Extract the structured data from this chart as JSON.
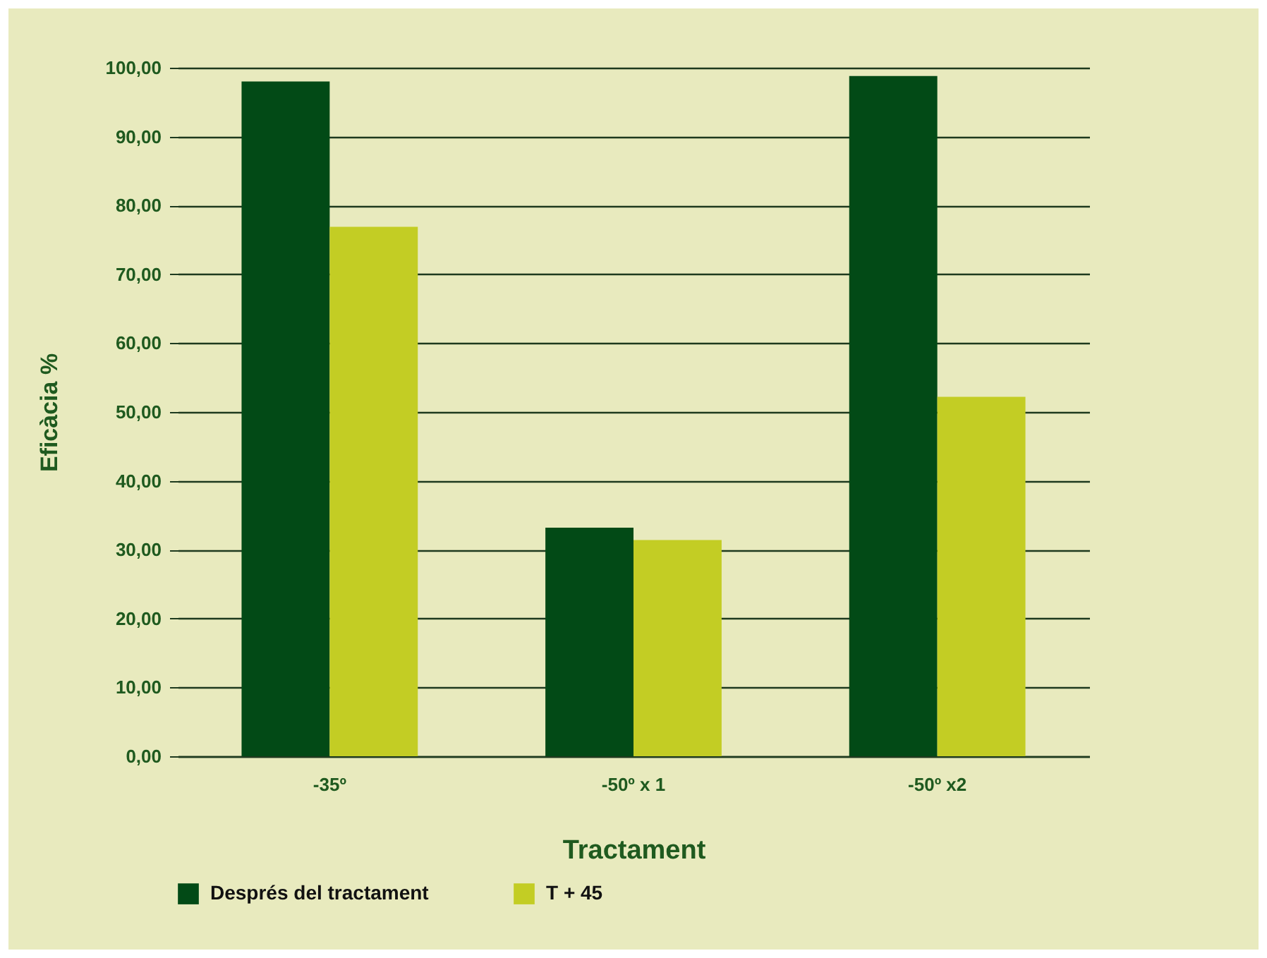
{
  "chart_data": {
    "type": "bar",
    "xlabel": "Tractament",
    "ylabel": "Eficàcia %",
    "categories": [
      "-35º",
      "-50º x 1",
      "-50º x2"
    ],
    "series": [
      {
        "name": "Després del tractament",
        "color": "#024a16",
        "values": [
          98.0,
          33.2,
          98.8
        ]
      },
      {
        "name": "T + 45",
        "color": "#c3cd24",
        "values": [
          76.9,
          31.4,
          52.2
        ]
      }
    ],
    "ylim": [
      0,
      100
    ],
    "yticks": [
      {
        "value": 0,
        "label": "0,00"
      },
      {
        "value": 10,
        "label": "10,00"
      },
      {
        "value": 20,
        "label": "20,00"
      },
      {
        "value": 30,
        "label": "30,00"
      },
      {
        "value": 40,
        "label": "40,00"
      },
      {
        "value": 50,
        "label": "50,00"
      },
      {
        "value": 60,
        "label": "60,00"
      },
      {
        "value": 70,
        "label": "70,00"
      },
      {
        "value": 80,
        "label": "80,00"
      },
      {
        "value": 90,
        "label": "90,00"
      },
      {
        "value": 100,
        "label": "100,00"
      }
    ],
    "grid": "y",
    "legend": "bottom"
  }
}
